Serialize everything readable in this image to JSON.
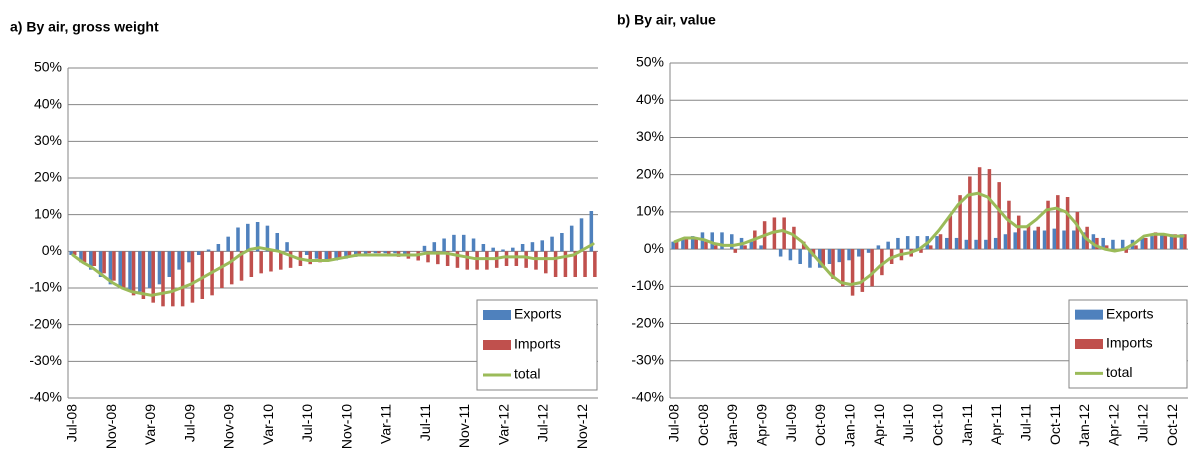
{
  "chart_data": [
    {
      "type": "bar",
      "title": "a) By air, gross weight",
      "categories": [
        "Jul-08",
        null,
        null,
        null,
        "Nov-08",
        null,
        null,
        null,
        "Var-09",
        null,
        null,
        null,
        "Jul-09",
        null,
        null,
        null,
        "Nov-09",
        null,
        null,
        null,
        "Var-10",
        null,
        null,
        null,
        "Jul-10",
        null,
        null,
        null,
        "Nov-10",
        null,
        null,
        null,
        "Var-11",
        null,
        null,
        null,
        "Jul-11",
        null,
        null,
        null,
        "Nov-11",
        null,
        null,
        null,
        "Var-12",
        null,
        null,
        null,
        "Jul-12",
        null,
        null,
        null,
        "Nov-12",
        null
      ],
      "series": [
        {
          "name": "Exports",
          "color": "#4f81bd",
          "values": [
            -1,
            -3,
            -5,
            -7,
            -9,
            -10,
            -11,
            -11,
            -10,
            -9,
            -7,
            -5,
            -3,
            -1,
            0.5,
            2,
            4,
            6.5,
            7.5,
            8,
            7,
            5,
            2.5,
            0,
            -1,
            -2,
            -2.5,
            -2.5,
            -2,
            -1.5,
            -1,
            -0.5,
            -0.5,
            -0.5,
            -1,
            0,
            1.5,
            2.5,
            3.5,
            4.5,
            4.5,
            3.5,
            2,
            1,
            0.5,
            1,
            2,
            2.5,
            3,
            4,
            5,
            7,
            9,
            11
          ]
        },
        {
          "name": "Imports",
          "color": "#c0504d",
          "values": [
            -1,
            -3,
            -4,
            -6,
            -8,
            -10,
            -12,
            -13,
            -14,
            -15,
            -15,
            -15,
            -14,
            -13,
            -12,
            -10,
            -9,
            -8,
            -7,
            -6,
            -5.5,
            -5,
            -4.5,
            -4,
            -3.5,
            -3,
            -2.5,
            -2,
            -1.5,
            -1,
            -0.5,
            -0.5,
            -1,
            -1.5,
            -2,
            -2.5,
            -3,
            -3.5,
            -4,
            -4.5,
            -5,
            -5,
            -5,
            -4.5,
            -4,
            -4,
            -4.5,
            -5,
            -6,
            -7,
            -7,
            -7,
            -7,
            -7
          ]
        },
        {
          "name": "total",
          "color": "#9bbb59",
          "line": true,
          "values": [
            -1,
            -3,
            -4.5,
            -6.5,
            -8.5,
            -10,
            -11,
            -11.5,
            -12,
            -11.5,
            -11,
            -10,
            -9,
            -7.5,
            -6,
            -4.5,
            -3,
            -1,
            0.5,
            1,
            0.5,
            0,
            -1,
            -2,
            -2.5,
            -2.5,
            -2.5,
            -2,
            -1.5,
            -1,
            -1,
            -1,
            -1,
            -1,
            -1,
            -1,
            -0.5,
            -0.5,
            -0.5,
            -1,
            -1.5,
            -2,
            -2,
            -2,
            -1.5,
            -1.5,
            -1.5,
            -2,
            -2,
            -2,
            -1.5,
            -1,
            0.5,
            2
          ]
        }
      ],
      "ylim": [
        -40,
        50
      ],
      "yticks": [
        {
          "value": -40,
          "label": "-40%"
        },
        {
          "value": -30,
          "label": "-30%"
        },
        {
          "value": -20,
          "label": "-20%"
        },
        {
          "value": -10,
          "label": "-10%"
        },
        {
          "value": 0,
          "label": "0%"
        },
        {
          "value": 10,
          "label": "10%"
        },
        {
          "value": 20,
          "label": "20%"
        },
        {
          "value": 30,
          "label": "30%"
        },
        {
          "value": 40,
          "label": "40%"
        },
        {
          "value": 50,
          "label": "50%"
        }
      ],
      "grid": true,
      "legend": "lower right"
    },
    {
      "type": "bar",
      "title": "b) By air, value",
      "categories": [
        "Jul-08",
        null,
        null,
        "Oct-08",
        null,
        null,
        "Jan-09",
        null,
        null,
        "Apr-09",
        null,
        null,
        "Jul-09",
        null,
        null,
        "Oct-09",
        null,
        null,
        "Jan-10",
        null,
        null,
        "Apr-10",
        null,
        null,
        "Jul-10",
        null,
        null,
        "Oct-10",
        null,
        null,
        "Jan-11",
        null,
        null,
        "Apr-11",
        null,
        null,
        "Jul-11",
        null,
        null,
        "Oct-11",
        null,
        null,
        "Jan-12",
        null,
        null,
        "Apr-12",
        null,
        null,
        "Jul-12",
        null,
        null,
        "Oct-12",
        null
      ],
      "series": [
        {
          "name": "Exports",
          "color": "#4f81bd",
          "values": [
            2,
            3,
            3.5,
            4.5,
            4.5,
            4.5,
            4,
            3,
            2,
            1,
            0,
            -2,
            -3,
            -4,
            -5,
            -5,
            -4,
            -3.5,
            -3,
            -2,
            -1,
            1,
            2,
            3,
            3.5,
            3.5,
            3.5,
            3.5,
            3,
            3,
            2.5,
            2.5,
            2.5,
            3,
            4,
            4.5,
            5,
            5,
            5,
            5.5,
            5,
            5,
            4.5,
            4,
            3,
            2.5,
            2.5,
            2.5,
            3,
            3.5,
            4,
            4,
            4
          ]
        },
        {
          "name": "Imports",
          "color": "#c0504d",
          "values": [
            2,
            3,
            3,
            2,
            1,
            0,
            -1,
            1,
            5,
            7.5,
            8.5,
            8.5,
            6,
            2,
            -2,
            -5,
            -8,
            -10,
            -12.5,
            -11.5,
            -10,
            -7,
            -4,
            -3,
            -2,
            -1,
            1,
            4,
            9,
            14.5,
            19.5,
            22,
            21.5,
            18,
            13,
            9,
            6.5,
            6,
            13,
            14.5,
            14,
            10,
            6,
            3,
            1,
            -0.5,
            -1,
            1,
            3,
            4.5,
            4,
            4,
            4
          ]
        },
        {
          "name": "total",
          "color": "#9bbb59",
          "line": true,
          "values": [
            2,
            3,
            3,
            2.5,
            1.5,
            1,
            1,
            1.5,
            2.5,
            3.5,
            4.5,
            5,
            4,
            2,
            -1,
            -4,
            -7,
            -9,
            -9.5,
            -9,
            -7,
            -4.5,
            -2.5,
            -1.5,
            -1,
            0,
            2,
            5,
            8.5,
            12,
            14.5,
            15,
            14,
            11,
            8,
            6,
            6,
            8,
            10.5,
            11,
            10,
            7,
            3,
            1,
            0,
            -0.5,
            0,
            1.5,
            3.5,
            4,
            4,
            3.5,
            3.5
          ]
        }
      ],
      "ylim": [
        -40,
        50
      ],
      "yticks": [
        {
          "value": -40,
          "label": "-40%"
        },
        {
          "value": -30,
          "label": "-30%"
        },
        {
          "value": -20,
          "label": "-20%"
        },
        {
          "value": -10,
          "label": "-10%"
        },
        {
          "value": 0,
          "label": "0%"
        },
        {
          "value": 10,
          "label": "10%"
        },
        {
          "value": 20,
          "label": "20%"
        },
        {
          "value": 30,
          "label": "30%"
        },
        {
          "value": 40,
          "label": "40%"
        },
        {
          "value": 50,
          "label": "50%"
        }
      ],
      "grid": true,
      "legend": "lower right"
    }
  ]
}
